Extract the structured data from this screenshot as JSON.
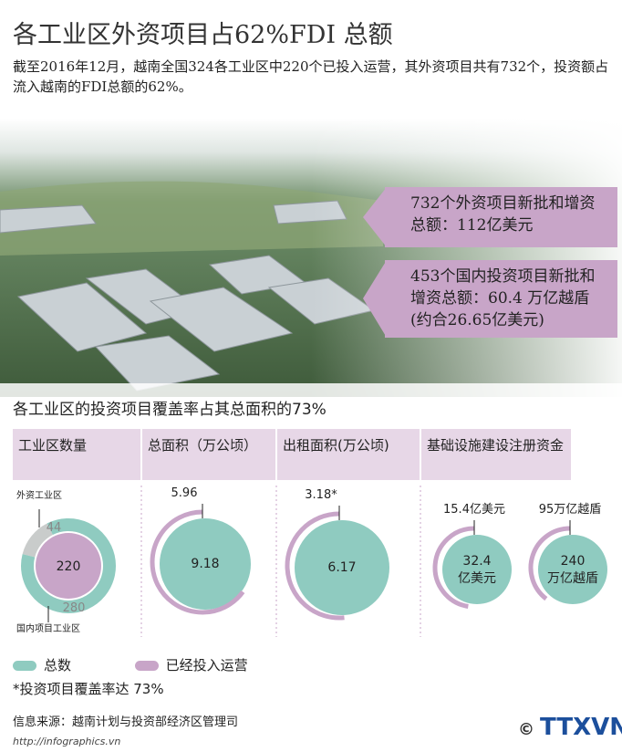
{
  "header": {
    "title": "各工业区外资项目占62%FDI 总额",
    "intro": "截至2016年12月，越南全国324各工业区中220个已投入运营，其外资项目共有732个，投资额占流入越南的FDI总额的62%。"
  },
  "callouts": [
    "732个外资项目新批和增资总额：112亿美元",
    "453个国内投资项目新批和增资总额：60.4 万亿越盾 (约合26.65亿美元)"
  ],
  "section_title": "各工业区的投资项目覆盖率占其总面积的73%",
  "columns": [
    "工业区数量",
    "总面积（万公顷）",
    "出租面积(万公顷)",
    "基础设施建设注册资金"
  ],
  "charts": [
    {
      "type": "ring",
      "outer": [
        {
          "label": "外资工业区",
          "value": 44
        },
        {
          "label": "国内项目工业区",
          "value": 280
        }
      ],
      "inner": 220
    },
    {
      "type": "pie",
      "total": 9.18,
      "used": 5.96
    },
    {
      "type": "pie",
      "total": 6.17,
      "used": {
        "value": 3.18,
        "label": "3.18*"
      }
    },
    {
      "type": "pie",
      "total": {
        "value": 32.4,
        "label": "32.4亿美元"
      },
      "used": {
        "value": 15.4,
        "label": "15.4亿美元"
      }
    },
    {
      "type": "pie",
      "total": {
        "value": 240,
        "label": "240万亿越盾"
      },
      "used": {
        "value": 95,
        "label": "95万亿越盾"
      }
    }
  ],
  "colors": {
    "total": "#8fcbc0",
    "used": "#c8a5c8",
    "foreign": "#c9cccb"
  },
  "legend": [
    "总数",
    "已经投入运营"
  ],
  "note": "*投资项目覆盖率达 73%",
  "source": "信息来源：越南计划与投资部经济区管理司",
  "url": "http://infographics.vn",
  "logo": "TTXVN"
}
